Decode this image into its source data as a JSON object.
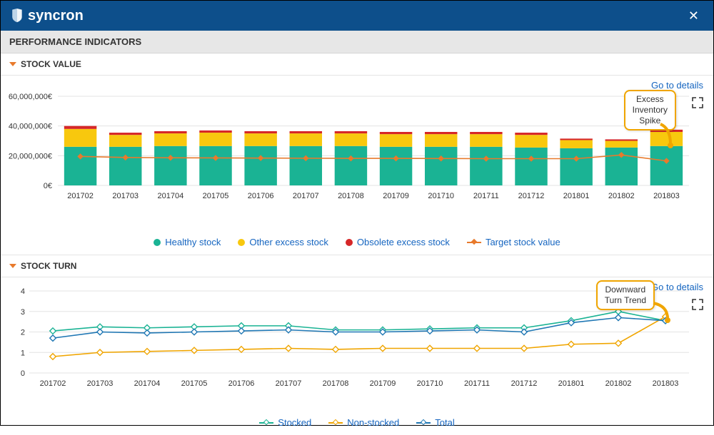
{
  "brand": "syncron",
  "section_title": "PERFORMANCE INDICATORS",
  "go_to_details": "Go to details",
  "colors": {
    "topbar": "#0d4f8b",
    "healthy": "#1ab394",
    "other_excess": "#f8c80e",
    "obsolete": "#d62728",
    "target": "#e87a2c",
    "stocked": "#1ab394",
    "nonstocked": "#f0a500",
    "total": "#1f77b4",
    "link": "#1565c0",
    "axis": "#555",
    "grid": "#e3e3e3",
    "callout_border": "#f0a500"
  },
  "stock_value": {
    "title": "STOCK VALUE",
    "type": "stacked-bar-with-line",
    "categories": [
      "201702",
      "201703",
      "201704",
      "201705",
      "201706",
      "201707",
      "201708",
      "201709",
      "201710",
      "201711",
      "201712",
      "201801",
      "201802",
      "201803"
    ],
    "ylim": [
      0,
      60000000
    ],
    "ytick_step": 20000000,
    "y_suffix": "€",
    "series": {
      "healthy": [
        26000000,
        26000000,
        26500000,
        26500000,
        26500000,
        26500000,
        26500000,
        26000000,
        26000000,
        26000000,
        25500000,
        25000000,
        25500000,
        26500000
      ],
      "other": [
        12000000,
        8000000,
        8500000,
        9000000,
        8500000,
        8500000,
        8500000,
        8500000,
        8500000,
        8500000,
        8500000,
        5500000,
        4500000,
        9500000
      ],
      "obsolete": [
        2000000,
        1500000,
        1500000,
        1500000,
        1500000,
        1500000,
        1500000,
        1500000,
        1500000,
        1500000,
        1500000,
        1000000,
        1000000,
        1500000
      ]
    },
    "target": [
      19500000,
      18800000,
      18600000,
      18500000,
      18400000,
      18300000,
      18200000,
      18200000,
      18100000,
      18000000,
      18000000,
      18000000,
      20500000,
      16500000
    ],
    "legend": [
      {
        "label": "Healthy stock",
        "color": "#1ab394",
        "shape": "circle"
      },
      {
        "label": "Other excess stock",
        "color": "#f8c80e",
        "shape": "circle"
      },
      {
        "label": "Obsolete excess stock",
        "color": "#d62728",
        "shape": "circle"
      },
      {
        "label": "Target stock value",
        "color": "#e87a2c",
        "shape": "line-diamond"
      }
    ],
    "callout": {
      "text1": "Excess",
      "text2": "Inventory",
      "text3": "Spike"
    }
  },
  "stock_turn": {
    "title": "STOCK TURN",
    "type": "line",
    "categories": [
      "201702",
      "201703",
      "201704",
      "201705",
      "201706",
      "201707",
      "201708",
      "201709",
      "201710",
      "201711",
      "201712",
      "201801",
      "201802",
      "201803"
    ],
    "ylim": [
      0,
      4
    ],
    "ytick_step": 1,
    "series": {
      "stocked": [
        2.05,
        2.25,
        2.2,
        2.25,
        2.3,
        2.3,
        2.1,
        2.1,
        2.15,
        2.2,
        2.2,
        2.55,
        3.0,
        2.55
      ],
      "nonstocked": [
        0.8,
        1.0,
        1.05,
        1.1,
        1.15,
        1.2,
        1.15,
        1.2,
        1.2,
        1.2,
        1.2,
        1.4,
        1.45,
        2.75
      ],
      "total": [
        1.7,
        2.0,
        1.95,
        2.0,
        2.05,
        2.1,
        2.0,
        2.0,
        2.05,
        2.1,
        2.0,
        2.45,
        2.7,
        2.55
      ]
    },
    "legend": [
      {
        "label": "Stocked",
        "color": "#1ab394",
        "shape": "line-diamond"
      },
      {
        "label": "Non-stocked",
        "color": "#f0a500",
        "shape": "line-diamond"
      },
      {
        "label": "Total",
        "color": "#1f77b4",
        "shape": "line-diamond"
      }
    ],
    "callout": {
      "text1": "Downward",
      "text2": "Turn Trend"
    }
  }
}
